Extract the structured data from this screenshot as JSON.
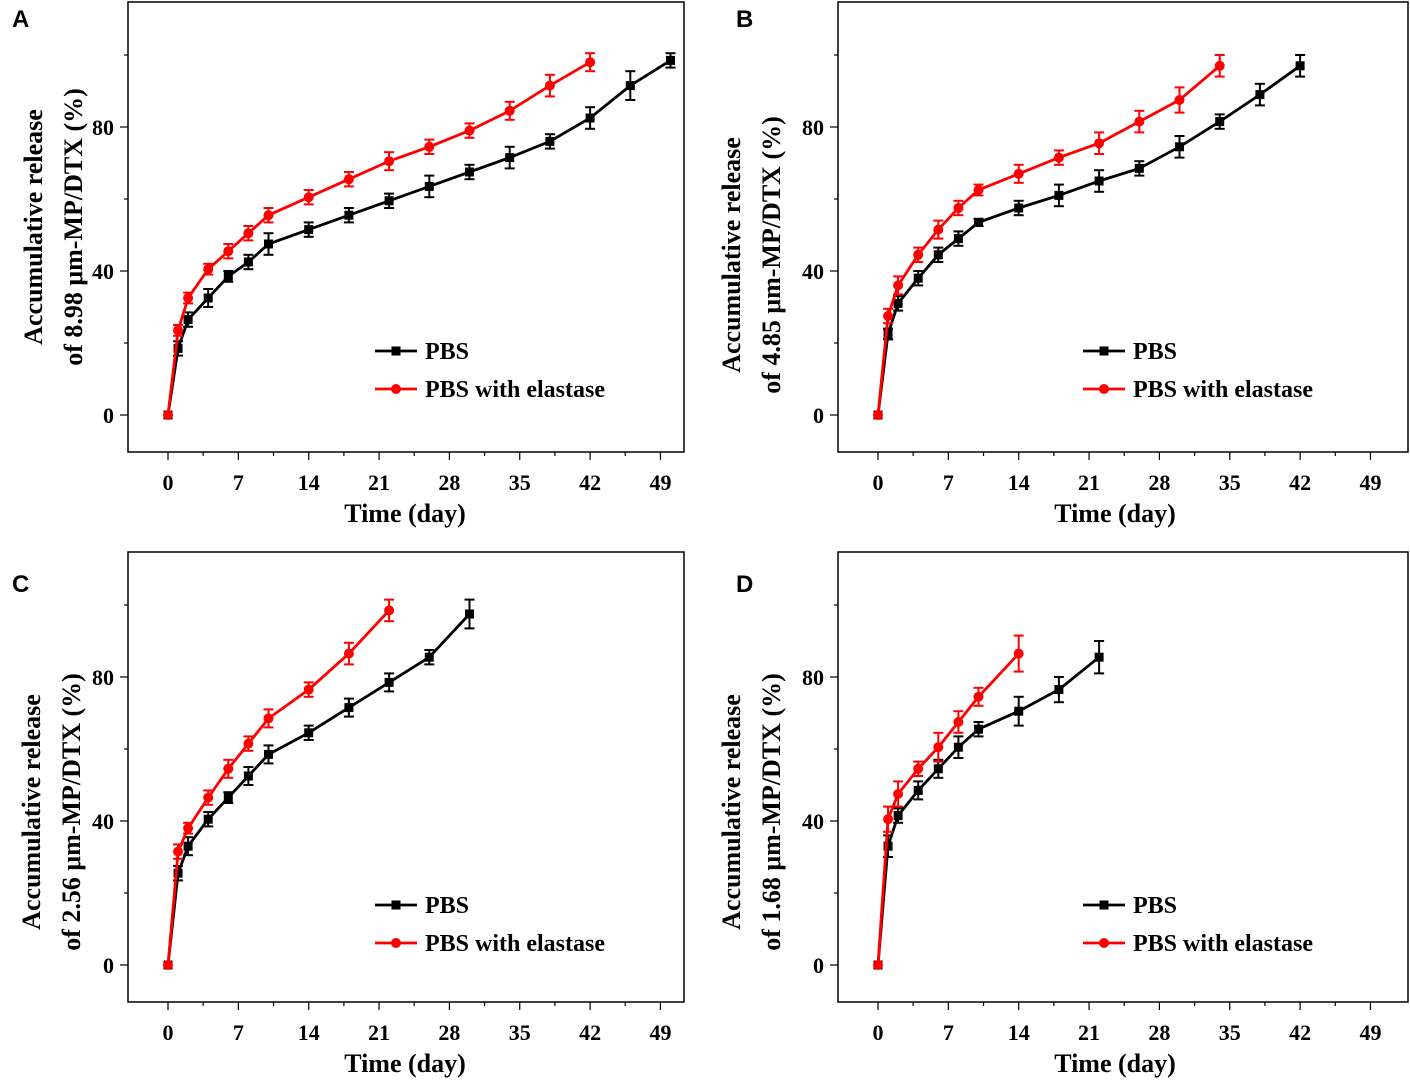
{
  "chart_data": [
    {
      "panel": "A",
      "type": "line",
      "xlabel": "Time (day)",
      "ylabel_lines": [
        "Accumulative release",
        "of 8.98 μm-MP/DTX (%)"
      ],
      "xticks": [
        "0",
        "7",
        "14",
        "21",
        "28",
        "35",
        "42",
        "49"
      ],
      "yticks": [
        "0",
        "40",
        "80"
      ],
      "xlim": [
        -4,
        52
      ],
      "ylim": [
        -10,
        115
      ],
      "legend_position": "lower-right",
      "series": [
        {
          "name": "PBS",
          "color": "#000000",
          "marker": "square",
          "x": [
            0,
            1,
            2,
            4,
            6,
            8,
            10,
            14,
            18,
            22,
            26,
            30,
            34,
            38,
            42,
            46,
            50
          ],
          "y": [
            0,
            18.5,
            26.5,
            32.5,
            38.5,
            42.5,
            47.5,
            51.5,
            55.5,
            59.5,
            63.5,
            67.5,
            71.5,
            76,
            82.5,
            91.5,
            98.5
          ],
          "err": [
            0,
            2,
            2,
            2.5,
            1.5,
            2,
            3,
            2,
            2,
            2,
            3,
            2,
            3,
            2,
            3,
            4,
            2
          ]
        },
        {
          "name": "PBS with elastase",
          "color": "#ff0000",
          "marker": "circle",
          "x": [
            0,
            1,
            2,
            4,
            6,
            8,
            10,
            14,
            18,
            22,
            26,
            30,
            34,
            38,
            42
          ],
          "y": [
            0,
            23.5,
            32.5,
            40.5,
            45.5,
            50.5,
            55.5,
            60.5,
            65.5,
            70.5,
            74.5,
            79,
            84.5,
            91.5,
            98
          ],
          "err": [
            0,
            1.5,
            1.5,
            1.5,
            2,
            2,
            2,
            2,
            2,
            2.5,
            2,
            2,
            2.5,
            3,
            2.5
          ]
        }
      ]
    },
    {
      "panel": "B",
      "type": "line",
      "xlabel": "Time (day)",
      "ylabel_lines": [
        "Accumulative release",
        "of 4.85 μm-MP/DTX (%)"
      ],
      "xticks": [
        "0",
        "7",
        "14",
        "21",
        "28",
        "35",
        "42",
        "49"
      ],
      "yticks": [
        "0",
        "40",
        "80"
      ],
      "xlim": [
        -4,
        52
      ],
      "ylim": [
        -10,
        115
      ],
      "legend_position": "lower-right",
      "series": [
        {
          "name": "PBS",
          "color": "#000000",
          "marker": "square",
          "x": [
            0,
            1,
            2,
            4,
            6,
            8,
            10,
            14,
            18,
            22,
            26,
            30,
            34,
            38,
            42
          ],
          "y": [
            0,
            22.5,
            31,
            38,
            44.5,
            49,
            53.5,
            57.5,
            61,
            65,
            68.5,
            74.5,
            81.5,
            89,
            97
          ],
          "err": [
            0,
            1.5,
            2,
            2,
            2,
            2,
            1,
            2,
            3,
            3,
            2,
            3,
            2,
            3,
            3
          ]
        },
        {
          "name": "PBS with elastase",
          "color": "#ff0000",
          "marker": "circle",
          "x": [
            0,
            1,
            2,
            4,
            6,
            8,
            10,
            14,
            18,
            22,
            26,
            30,
            34
          ],
          "y": [
            0,
            27.5,
            36,
            44.5,
            51.5,
            57.5,
            62.5,
            67,
            71.5,
            75.5,
            81.5,
            87.5,
            97
          ],
          "err": [
            0,
            2,
            2.5,
            2,
            2.5,
            2,
            1.5,
            2.5,
            2,
            3,
            3,
            3.5,
            3
          ]
        }
      ]
    },
    {
      "panel": "C",
      "type": "line",
      "xlabel": "Time (day)",
      "ylabel_lines": [
        "Accumulative release",
        "of 2.56 μm-MP/DTX (%)"
      ],
      "xticks": [
        "0",
        "7",
        "14",
        "21",
        "28",
        "35",
        "42",
        "49"
      ],
      "yticks": [
        "0",
        "40",
        "80"
      ],
      "xlim": [
        -4,
        52
      ],
      "ylim": [
        -10,
        115
      ],
      "legend_position": "lower-right",
      "series": [
        {
          "name": "PBS",
          "color": "#000000",
          "marker": "square",
          "x": [
            0,
            1,
            2,
            4,
            6,
            8,
            10,
            14,
            18,
            22,
            26,
            30
          ],
          "y": [
            0,
            25.5,
            33,
            40.5,
            46.5,
            52.5,
            58.5,
            64.5,
            71.5,
            78.5,
            85.5,
            97.5
          ],
          "err": [
            0,
            2,
            2.5,
            2,
            1.5,
            2.5,
            2.5,
            2,
            2.5,
            2.5,
            2,
            4
          ]
        },
        {
          "name": "PBS with elastase",
          "color": "#ff0000",
          "marker": "circle",
          "x": [
            0,
            1,
            2,
            4,
            6,
            8,
            10,
            14,
            18,
            22
          ],
          "y": [
            0,
            31.5,
            38,
            46.5,
            54.5,
            61.5,
            68.5,
            76.5,
            86.5,
            98.5
          ],
          "err": [
            0,
            2,
            1.5,
            2,
            2.5,
            2,
            2.5,
            2,
            3,
            3
          ]
        }
      ]
    },
    {
      "panel": "D",
      "type": "line",
      "xlabel": "Time (day)",
      "ylabel_lines": [
        "Accumulative release",
        "of 1.68 μm-MP/DTX (%)"
      ],
      "xticks": [
        "0",
        "7",
        "14",
        "21",
        "28",
        "35",
        "42",
        "49"
      ],
      "yticks": [
        "0",
        "40",
        "80"
      ],
      "xlim": [
        -4,
        52
      ],
      "ylim": [
        -10,
        115
      ],
      "legend_position": "lower-right",
      "series": [
        {
          "name": "PBS",
          "color": "#000000",
          "marker": "square",
          "x": [
            0,
            1,
            2,
            4,
            6,
            8,
            10,
            14,
            18,
            22
          ],
          "y": [
            0,
            33,
            41.5,
            48.5,
            54.5,
            60.5,
            65.5,
            70.5,
            76.5,
            85.5
          ],
          "err": [
            0,
            3,
            2,
            2.5,
            2.5,
            3,
            2,
            4,
            3.5,
            4.5
          ]
        },
        {
          "name": "PBS with elastase",
          "color": "#ff0000",
          "marker": "circle",
          "x": [
            0,
            1,
            2,
            4,
            6,
            8,
            10,
            14
          ],
          "y": [
            0,
            40.5,
            47.5,
            54.5,
            60.5,
            67.5,
            74.5,
            86.5
          ],
          "err": [
            0,
            3.5,
            3.5,
            2,
            4,
            3,
            2.5,
            5
          ]
        }
      ]
    }
  ]
}
